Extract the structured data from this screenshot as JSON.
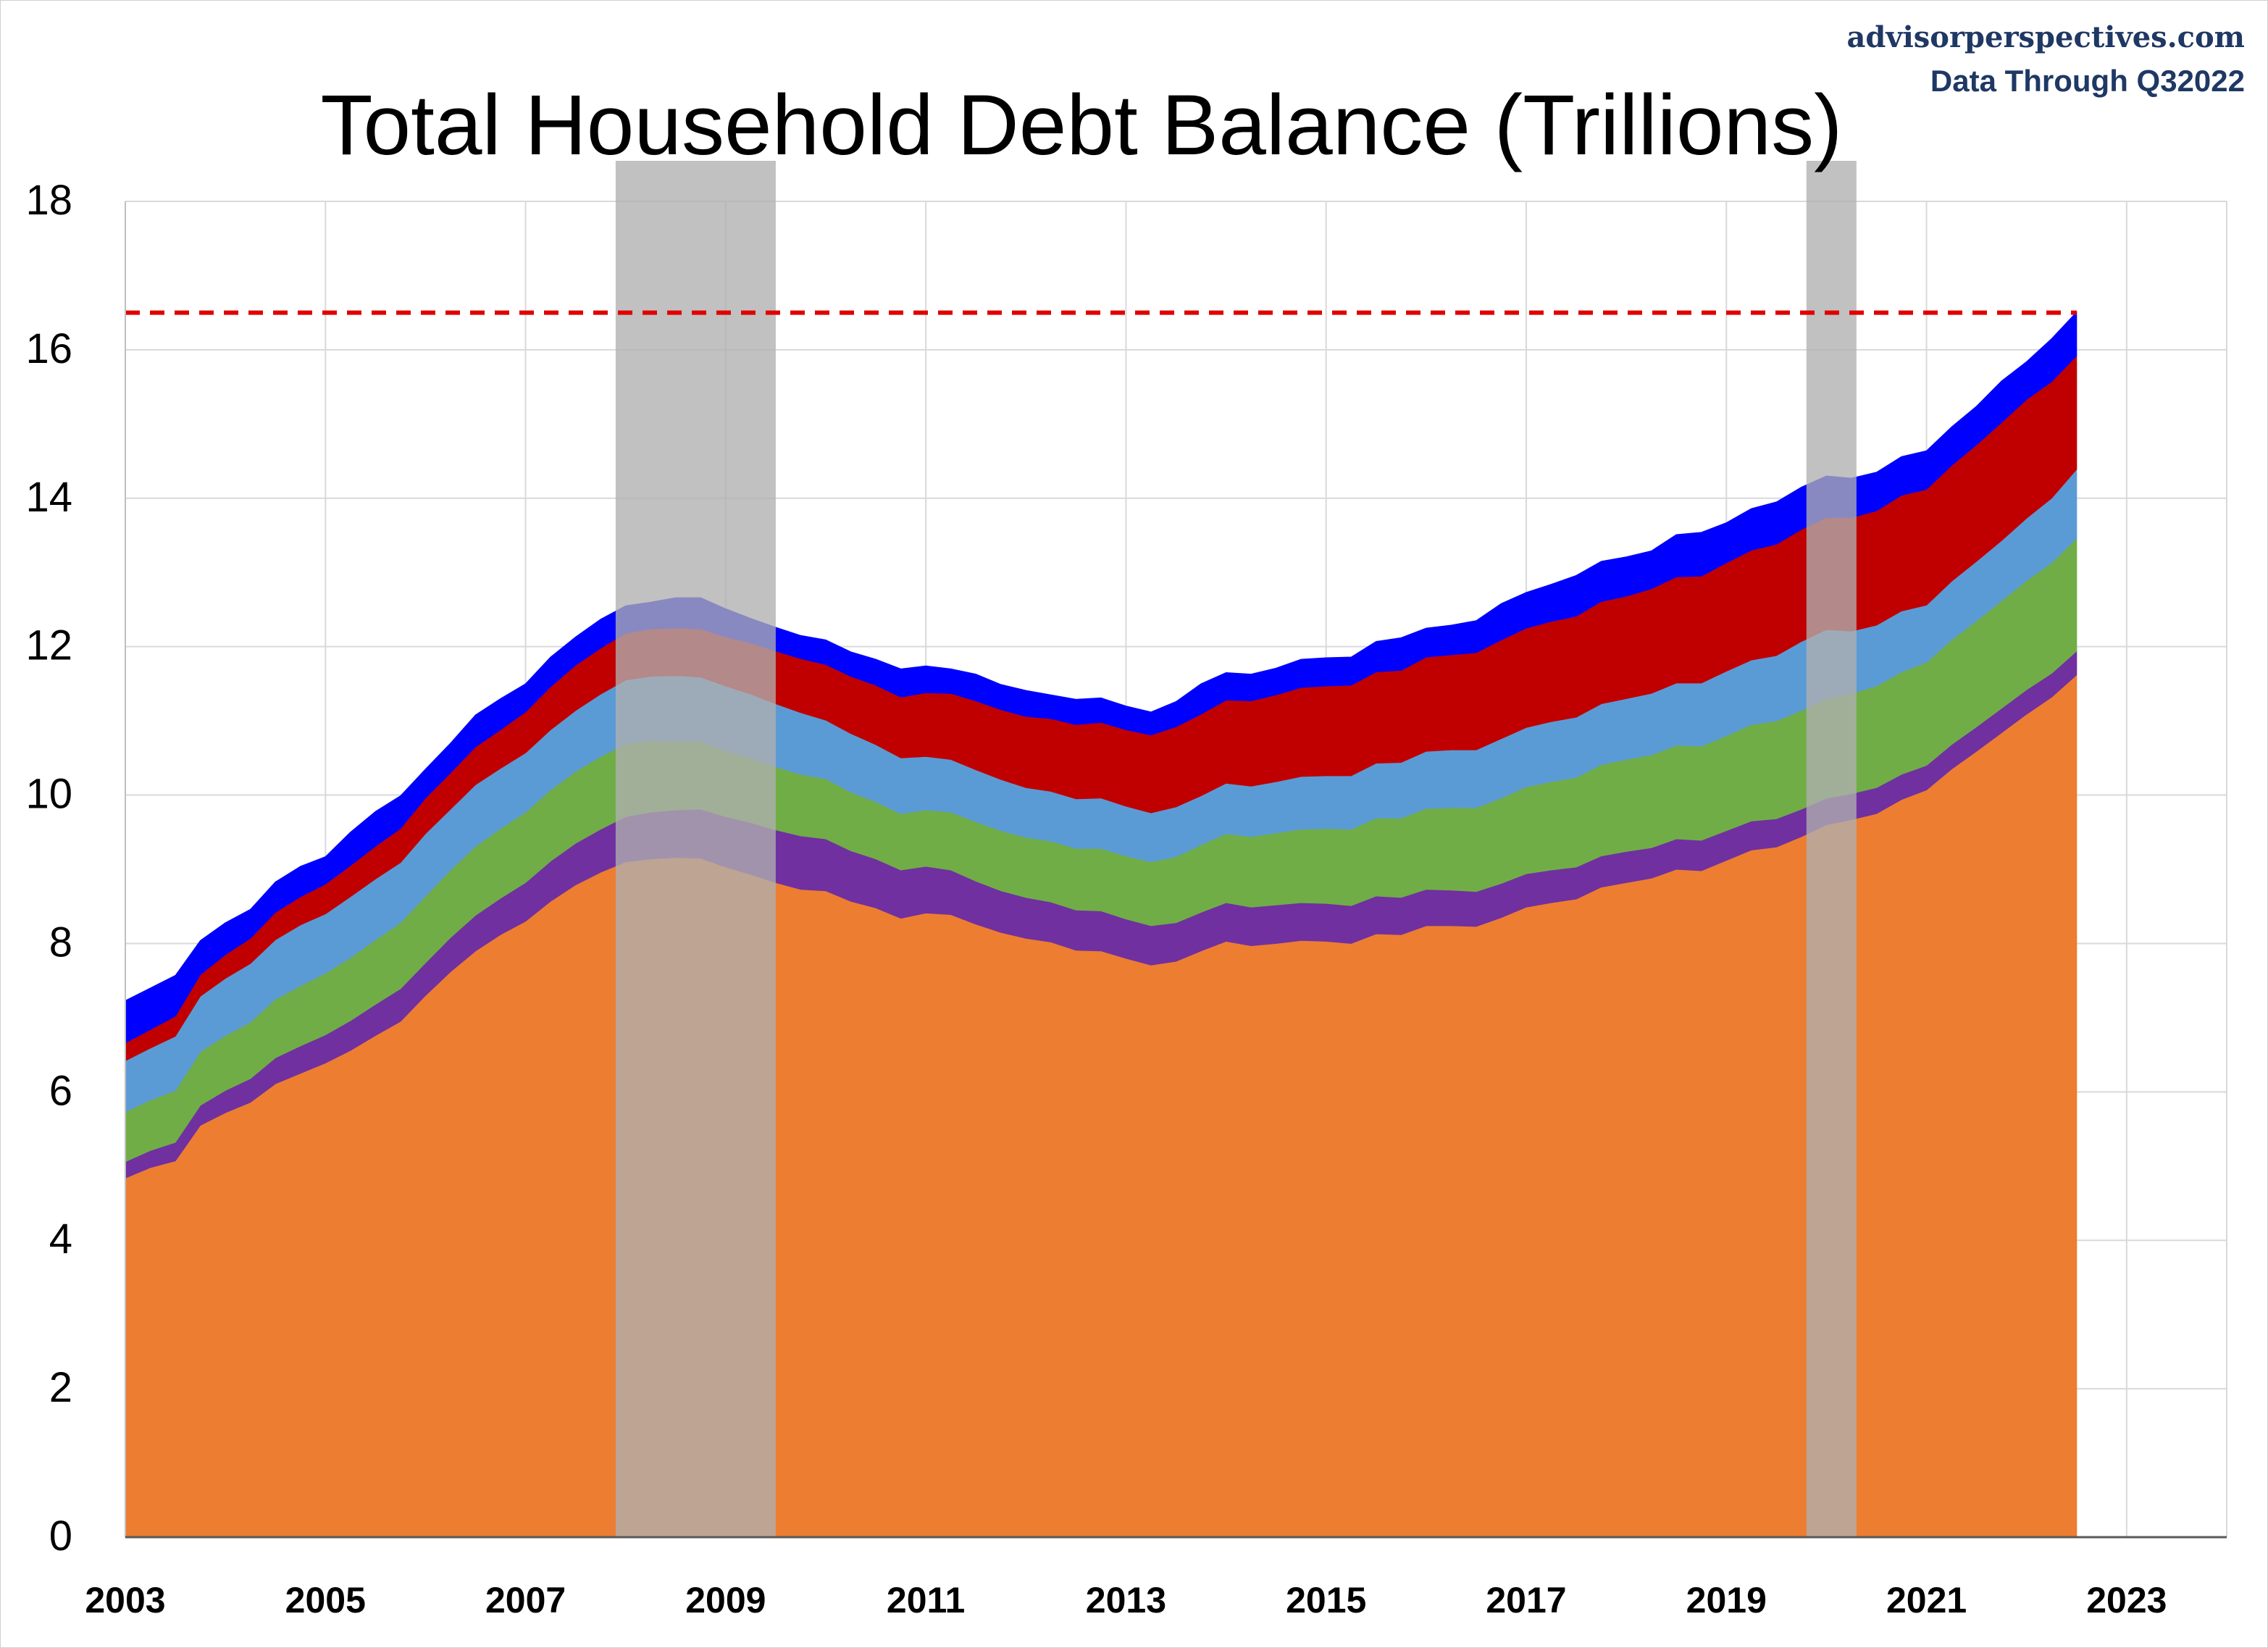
{
  "source_line1": "advisorperspectives.com",
  "source_line2": "Data Through Q32022",
  "chart_data": {
    "type": "area",
    "stacked": true,
    "title": "Total Household Debt Balance (Trillions)",
    "xlabel": "",
    "ylabel": "",
    "xlim": [
      2003,
      2024
    ],
    "ylim": [
      0,
      18
    ],
    "grid": true,
    "legend": "none",
    "xticks": [
      "2003",
      "2005",
      "2007",
      "2009",
      "2011",
      "2013",
      "2015",
      "2017",
      "2019",
      "2021",
      "2023"
    ],
    "yticks": [
      "0",
      "2",
      "4",
      "6",
      "8",
      "10",
      "12",
      "14",
      "16",
      "18"
    ],
    "reference_line": {
      "value": 16.5,
      "color": "#e00000",
      "style": "dashed"
    },
    "recessions": [
      [
        2007.9,
        2009.5
      ],
      [
        2019.8,
        2020.3
      ]
    ],
    "colors": {
      "bottom": "#ed7d31",
      "second": "#7030a0",
      "third": "#70ad47",
      "fourth": "#5b9bd5",
      "fifth": "#c00000",
      "top": "#0000ff",
      "recession_shade": "#b0b0b0",
      "grid": "#d9d9d9"
    },
    "x": [
      2003.0,
      2003.25,
      2003.5,
      2003.75,
      2004.0,
      2004.25,
      2004.5,
      2004.75,
      2005.0,
      2005.25,
      2005.5,
      2005.75,
      2006.0,
      2006.25,
      2006.5,
      2006.75,
      2007.0,
      2007.25,
      2007.5,
      2007.75,
      2008.0,
      2008.25,
      2008.5,
      2008.75,
      2009.0,
      2009.25,
      2009.5,
      2009.75,
      2010.0,
      2010.25,
      2010.5,
      2010.75,
      2011.0,
      2011.25,
      2011.5,
      2011.75,
      2012.0,
      2012.25,
      2012.5,
      2012.75,
      2013.0,
      2013.25,
      2013.5,
      2013.75,
      2014.0,
      2014.25,
      2014.5,
      2014.75,
      2015.0,
      2015.25,
      2015.5,
      2015.75,
      2016.0,
      2016.25,
      2016.5,
      2016.75,
      2017.0,
      2017.25,
      2017.5,
      2017.75,
      2018.0,
      2018.25,
      2018.5,
      2018.75,
      2019.0,
      2019.25,
      2019.5,
      2019.75,
      2020.0,
      2020.25,
      2020.5,
      2020.75,
      2021.0,
      2021.25,
      2021.5,
      2021.75,
      2022.0,
      2022.25,
      2022.5
    ],
    "totals": [
      7.23,
      7.4,
      7.57,
      8.04,
      8.28,
      8.46,
      8.83,
      9.04,
      9.17,
      9.5,
      9.78,
      9.99,
      10.35,
      10.7,
      11.08,
      11.3,
      11.5,
      11.86,
      12.13,
      12.37,
      12.55,
      12.6,
      12.66,
      12.66,
      12.51,
      12.38,
      12.26,
      12.15,
      12.09,
      11.93,
      11.83,
      11.7,
      11.74,
      11.7,
      11.63,
      11.49,
      11.41,
      11.35,
      11.29,
      11.31,
      11.2,
      11.12,
      11.26,
      11.5,
      11.65,
      11.63,
      11.71,
      11.83,
      11.85,
      11.86,
      12.07,
      12.12,
      12.25,
      12.29,
      12.35,
      12.58,
      12.73,
      12.84,
      12.96,
      13.15,
      13.21,
      13.29,
      13.51,
      13.54,
      13.67,
      13.86,
      13.95,
      14.15,
      14.3,
      14.27,
      14.35,
      14.56,
      14.64,
      14.96,
      15.24,
      15.58,
      15.84,
      16.15,
      16.51
    ],
    "series": [
      {
        "values": [
          4.84,
          4.98,
          5.07,
          5.55,
          5.72,
          5.86,
          6.11,
          6.25,
          6.39,
          6.56,
          6.76,
          6.95,
          7.3,
          7.62,
          7.9,
          8.12,
          8.3,
          8.57,
          8.79,
          8.96,
          9.1,
          9.14,
          9.16,
          9.15,
          9.03,
          8.93,
          8.82,
          8.73,
          8.71,
          8.57,
          8.48,
          8.34,
          8.41,
          8.39,
          8.26,
          8.15,
          8.07,
          8.02,
          7.91,
          7.9,
          7.8,
          7.71,
          7.76,
          7.9,
          8.03,
          7.97,
          8.0,
          8.04,
          8.03,
          8.0,
          8.13,
          8.12,
          8.24,
          8.24,
          8.23,
          8.35,
          8.49,
          8.55,
          8.6,
          8.76,
          8.82,
          8.88,
          9.0,
          8.98,
          9.12,
          9.26,
          9.3,
          9.44,
          9.6,
          9.67,
          9.75,
          9.94,
          10.07,
          10.35,
          10.59,
          10.84,
          11.09,
          11.32,
          11.62
        ]
      },
      {
        "values": [
          0.22,
          0.23,
          0.25,
          0.27,
          0.3,
          0.32,
          0.35,
          0.37,
          0.38,
          0.4,
          0.42,
          0.44,
          0.44,
          0.46,
          0.48,
          0.49,
          0.52,
          0.54,
          0.56,
          0.58,
          0.61,
          0.63,
          0.64,
          0.66,
          0.68,
          0.7,
          0.71,
          0.72,
          0.7,
          0.68,
          0.66,
          0.65,
          0.63,
          0.6,
          0.58,
          0.56,
          0.55,
          0.54,
          0.54,
          0.54,
          0.53,
          0.53,
          0.52,
          0.52,
          0.52,
          0.52,
          0.52,
          0.51,
          0.51,
          0.51,
          0.51,
          0.5,
          0.49,
          0.48,
          0.47,
          0.46,
          0.45,
          0.44,
          0.43,
          0.42,
          0.42,
          0.41,
          0.41,
          0.41,
          0.4,
          0.39,
          0.38,
          0.37,
          0.36,
          0.35,
          0.35,
          0.34,
          0.33,
          0.33,
          0.33,
          0.33,
          0.33,
          0.32,
          0.32
        ]
      },
      {
        "values": [
          0.67,
          0.68,
          0.7,
          0.72,
          0.74,
          0.76,
          0.79,
          0.81,
          0.83,
          0.85,
          0.87,
          0.89,
          0.9,
          0.91,
          0.93,
          0.94,
          0.95,
          0.96,
          0.97,
          0.98,
          0.98,
          0.96,
          0.93,
          0.91,
          0.89,
          0.87,
          0.85,
          0.83,
          0.81,
          0.79,
          0.77,
          0.76,
          0.76,
          0.78,
          0.8,
          0.81,
          0.81,
          0.82,
          0.83,
          0.84,
          0.85,
          0.86,
          0.89,
          0.91,
          0.93,
          0.95,
          0.97,
          0.99,
          1.01,
          1.03,
          1.05,
          1.07,
          1.09,
          1.11,
          1.13,
          1.15,
          1.17,
          1.19,
          1.21,
          1.23,
          1.24,
          1.25,
          1.26,
          1.27,
          1.28,
          1.3,
          1.32,
          1.33,
          1.34,
          1.35,
          1.37,
          1.38,
          1.39,
          1.41,
          1.43,
          1.45,
          1.47,
          1.49,
          1.52
        ]
      },
      {
        "values": [
          0.69,
          0.7,
          0.73,
          0.75,
          0.77,
          0.79,
          0.8,
          0.82,
          0.8,
          0.82,
          0.82,
          0.81,
          0.84,
          0.82,
          0.83,
          0.81,
          0.8,
          0.81,
          0.82,
          0.84,
          0.86,
          0.87,
          0.88,
          0.87,
          0.87,
          0.86,
          0.85,
          0.83,
          0.79,
          0.79,
          0.77,
          0.75,
          0.72,
          0.71,
          0.7,
          0.69,
          0.67,
          0.67,
          0.67,
          0.68,
          0.67,
          0.66,
          0.67,
          0.66,
          0.68,
          0.68,
          0.69,
          0.71,
          0.71,
          0.72,
          0.74,
          0.75,
          0.77,
          0.78,
          0.78,
          0.8,
          0.8,
          0.81,
          0.81,
          0.82,
          0.82,
          0.83,
          0.84,
          0.85,
          0.87,
          0.87,
          0.88,
          0.93,
          0.93,
          0.84,
          0.82,
          0.82,
          0.77,
          0.79,
          0.8,
          0.81,
          0.84,
          0.87,
          0.93
        ]
      },
      {
        "values": [
          0.24,
          0.25,
          0.27,
          0.29,
          0.32,
          0.34,
          0.37,
          0.38,
          0.4,
          0.42,
          0.44,
          0.46,
          0.48,
          0.49,
          0.51,
          0.52,
          0.55,
          0.58,
          0.61,
          0.62,
          0.63,
          0.64,
          0.64,
          0.65,
          0.66,
          0.69,
          0.71,
          0.73,
          0.75,
          0.77,
          0.8,
          0.82,
          0.86,
          0.89,
          0.93,
          0.94,
          0.96,
          0.98,
          1.0,
          1.02,
          1.03,
          1.05,
          1.08,
          1.1,
          1.12,
          1.15,
          1.17,
          1.2,
          1.21,
          1.22,
          1.23,
          1.24,
          1.27,
          1.28,
          1.31,
          1.33,
          1.34,
          1.35,
          1.36,
          1.38,
          1.38,
          1.41,
          1.43,
          1.44,
          1.46,
          1.48,
          1.5,
          1.51,
          1.51,
          1.53,
          1.54,
          1.56,
          1.56,
          1.56,
          1.57,
          1.59,
          1.6,
          1.57,
          1.53
        ]
      },
      {
        "values": [
          0.57,
          0.56,
          0.55,
          0.46,
          0.43,
          0.39,
          0.41,
          0.41,
          0.37,
          0.45,
          0.47,
          0.44,
          0.39,
          0.4,
          0.43,
          0.42,
          0.38,
          0.4,
          0.38,
          0.39,
          0.37,
          0.36,
          0.41,
          0.42,
          0.38,
          0.33,
          0.32,
          0.31,
          0.33,
          0.33,
          0.35,
          0.38,
          0.36,
          0.33,
          0.36,
          0.34,
          0.35,
          0.32,
          0.34,
          0.33,
          0.32,
          0.31,
          0.34,
          0.41,
          0.37,
          0.36,
          0.36,
          0.38,
          0.38,
          0.38,
          0.41,
          0.44,
          0.39,
          0.4,
          0.43,
          0.49,
          0.48,
          0.5,
          0.55,
          0.54,
          0.53,
          0.51,
          0.57,
          0.59,
          0.54,
          0.56,
          0.57,
          0.57,
          0.56,
          0.53,
          0.52,
          0.52,
          0.52,
          0.52,
          0.52,
          0.56,
          0.51,
          0.58,
          0.59
        ]
      }
    ]
  }
}
